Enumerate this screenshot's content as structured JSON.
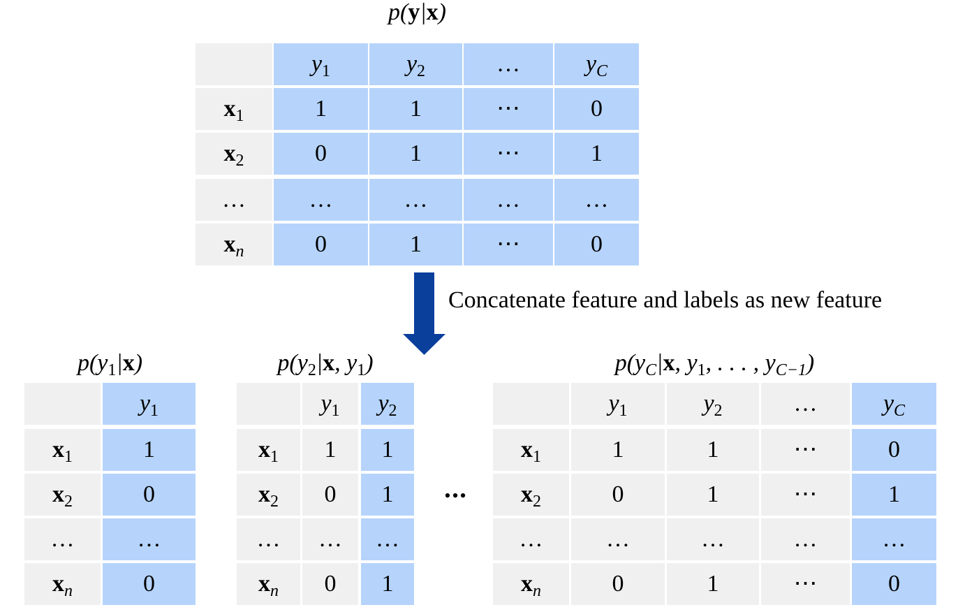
{
  "top_table": {
    "title": [
      "p(",
      {
        "b": "y"
      },
      "|",
      {
        "b": "x"
      },
      ")"
    ],
    "highlight": "all",
    "columns": [
      [
        "y",
        {
          "sub": "1"
        }
      ],
      [
        "y",
        {
          "sub": "2"
        }
      ],
      "…",
      [
        "y",
        {
          "sub": "C"
        }
      ]
    ],
    "rows": [
      {
        "label": [
          {
            "b": "x"
          },
          {
            "sub": "1"
          }
        ],
        "cells": [
          1,
          1,
          "⋯",
          0
        ]
      },
      {
        "label": [
          {
            "b": "x"
          },
          {
            "sub": "2"
          }
        ],
        "cells": [
          0,
          1,
          "⋯",
          1
        ]
      },
      {
        "label": "…",
        "cells": [
          "…",
          "…",
          "…",
          "…"
        ]
      },
      {
        "label": [
          {
            "b": "x"
          },
          {
            "sub": "n"
          }
        ],
        "cells": [
          0,
          1,
          "⋯",
          0
        ]
      }
    ]
  },
  "arrow_label": "Concatenate feature and labels as new feature",
  "bottom_tables": [
    {
      "title": [
        "p(y",
        {
          "sub": "1"
        },
        "|",
        {
          "b": "x"
        },
        ")"
      ],
      "highlight": "last",
      "columns": [
        [
          "y",
          {
            "sub": "1"
          }
        ]
      ],
      "rows": [
        {
          "label": [
            {
              "b": "x"
            },
            {
              "sub": "1"
            }
          ],
          "cells": [
            1
          ]
        },
        {
          "label": [
            {
              "b": "x"
            },
            {
              "sub": "2"
            }
          ],
          "cells": [
            0
          ]
        },
        {
          "label": "…",
          "cells": [
            "…"
          ]
        },
        {
          "label": [
            {
              "b": "x"
            },
            {
              "sub": "n"
            }
          ],
          "cells": [
            0
          ]
        }
      ]
    },
    {
      "title": [
        "p(y",
        {
          "sub": "2"
        },
        "|",
        {
          "b": "x"
        },
        ", y",
        {
          "sub": "1"
        },
        ")"
      ],
      "highlight": "last",
      "columns": [
        [
          "y",
          {
            "sub": "1"
          }
        ],
        [
          "y",
          {
            "sub": "2"
          }
        ]
      ],
      "rows": [
        {
          "label": [
            {
              "b": "x"
            },
            {
              "sub": "1"
            }
          ],
          "cells": [
            1,
            1
          ]
        },
        {
          "label": [
            {
              "b": "x"
            },
            {
              "sub": "2"
            }
          ],
          "cells": [
            0,
            1
          ]
        },
        {
          "label": "…",
          "cells": [
            "…",
            "…"
          ]
        },
        {
          "label": [
            {
              "b": "x"
            },
            {
              "sub": "n"
            }
          ],
          "cells": [
            0,
            1
          ]
        }
      ]
    },
    {
      "title": [
        "p(y",
        {
          "sub": "C"
        },
        "|",
        {
          "b": "x"
        },
        ", y",
        {
          "sub": "1"
        },
        ", . . . , y",
        {
          "sub": "C−1"
        },
        ")"
      ],
      "highlight": "last",
      "columns": [
        [
          "y",
          {
            "sub": "1"
          }
        ],
        [
          "y",
          {
            "sub": "2"
          }
        ],
        "…",
        [
          "y",
          {
            "sub": "C"
          }
        ]
      ],
      "rows": [
        {
          "label": [
            {
              "b": "x"
            },
            {
              "sub": "1"
            }
          ],
          "cells": [
            1,
            1,
            "⋯",
            0
          ]
        },
        {
          "label": [
            {
              "b": "x"
            },
            {
              "sub": "2"
            }
          ],
          "cells": [
            0,
            1,
            "⋯",
            1
          ]
        },
        {
          "label": "…",
          "cells": [
            "…",
            "…",
            "…",
            "…"
          ]
        },
        {
          "label": [
            {
              "b": "x"
            },
            {
              "sub": "n"
            }
          ],
          "cells": [
            0,
            1,
            "⋯",
            0
          ]
        }
      ]
    }
  ],
  "separator": "•••"
}
